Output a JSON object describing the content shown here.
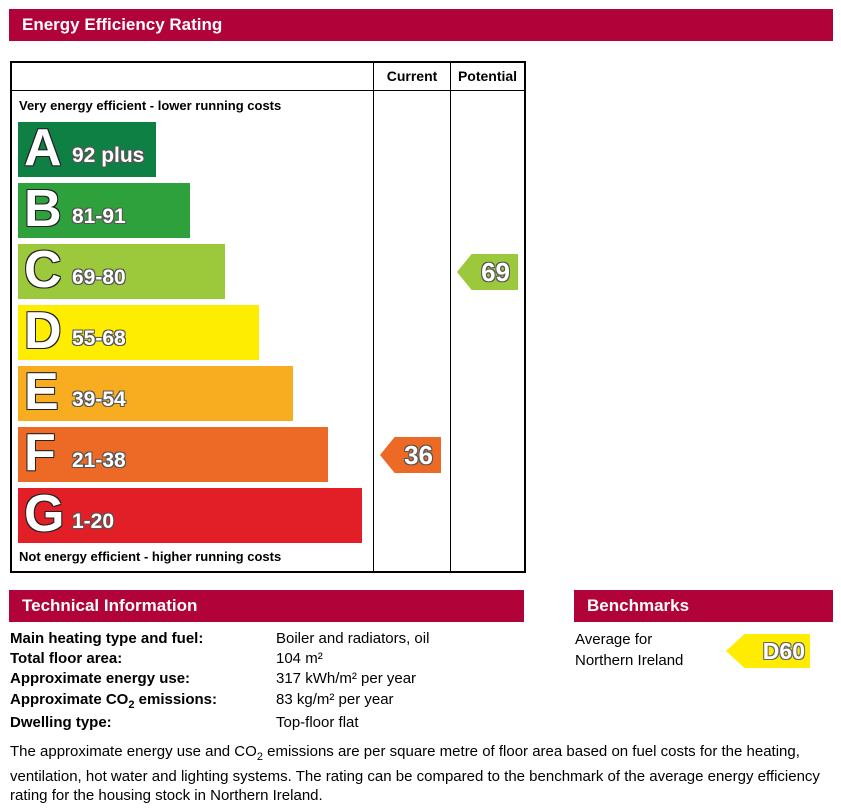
{
  "header": {
    "title": "Energy Efficiency Rating"
  },
  "chart_data": {
    "type": "bar",
    "title": "Energy Efficiency Rating",
    "columns": [
      "Current",
      "Potential"
    ],
    "top_label": "Very energy efficient - lower running costs",
    "bottom_label": "Not energy efficient - higher running costs",
    "categories": [
      "A",
      "B",
      "C",
      "D",
      "E",
      "F",
      "G"
    ],
    "bands": [
      {
        "letter": "A",
        "range": "92 plus",
        "color": "#0e8043",
        "min": 92,
        "max": 100
      },
      {
        "letter": "B",
        "range": "81-91",
        "color": "#2ea03c",
        "min": 81,
        "max": 91
      },
      {
        "letter": "C",
        "range": "69-80",
        "color": "#9bc93b",
        "min": 69,
        "max": 80
      },
      {
        "letter": "D",
        "range": "55-68",
        "color": "#ffed00",
        "min": 55,
        "max": 68
      },
      {
        "letter": "E",
        "range": "39-54",
        "color": "#f7ad1f",
        "min": 39,
        "max": 54
      },
      {
        "letter": "F",
        "range": "21-38",
        "color": "#ec6926",
        "min": 21,
        "max": 38
      },
      {
        "letter": "G",
        "range": "1-20",
        "color": "#e21f26",
        "min": 1,
        "max": 20
      }
    ],
    "current": {
      "value": 36,
      "band": "F",
      "color": "#ec6926"
    },
    "potential": {
      "value": 69,
      "band": "C",
      "color": "#9bc93b"
    }
  },
  "technical": {
    "title": "Technical Information",
    "rows": [
      {
        "label": "Main heating type and fuel:",
        "value": "Boiler and radiators, oil"
      },
      {
        "label": "Total floor area:",
        "value": "104 m²"
      },
      {
        "label": "Approximate energy use:",
        "value": "317 kWh/m² per year"
      },
      {
        "label_pre": "Approximate CO",
        "label_sub": "2",
        "label_post": " emissions:",
        "value": "83 kg/m² per year"
      },
      {
        "label": "Dwelling type:",
        "value": "Top-floor flat"
      }
    ]
  },
  "benchmarks": {
    "title": "Benchmarks",
    "line1": "Average for",
    "line2": "Northern Ireland",
    "rating": "D60",
    "color": "#ffec00"
  },
  "footnote": {
    "pre": "The approximate energy use and CO",
    "sub": "2",
    "post": " emissions are per square metre of floor area based on fuel costs for the heating, ventilation, hot water and lighting systems. The rating can be compared to the benchmark of the average energy efficiency rating for the housing stock in Northern Ireland."
  }
}
